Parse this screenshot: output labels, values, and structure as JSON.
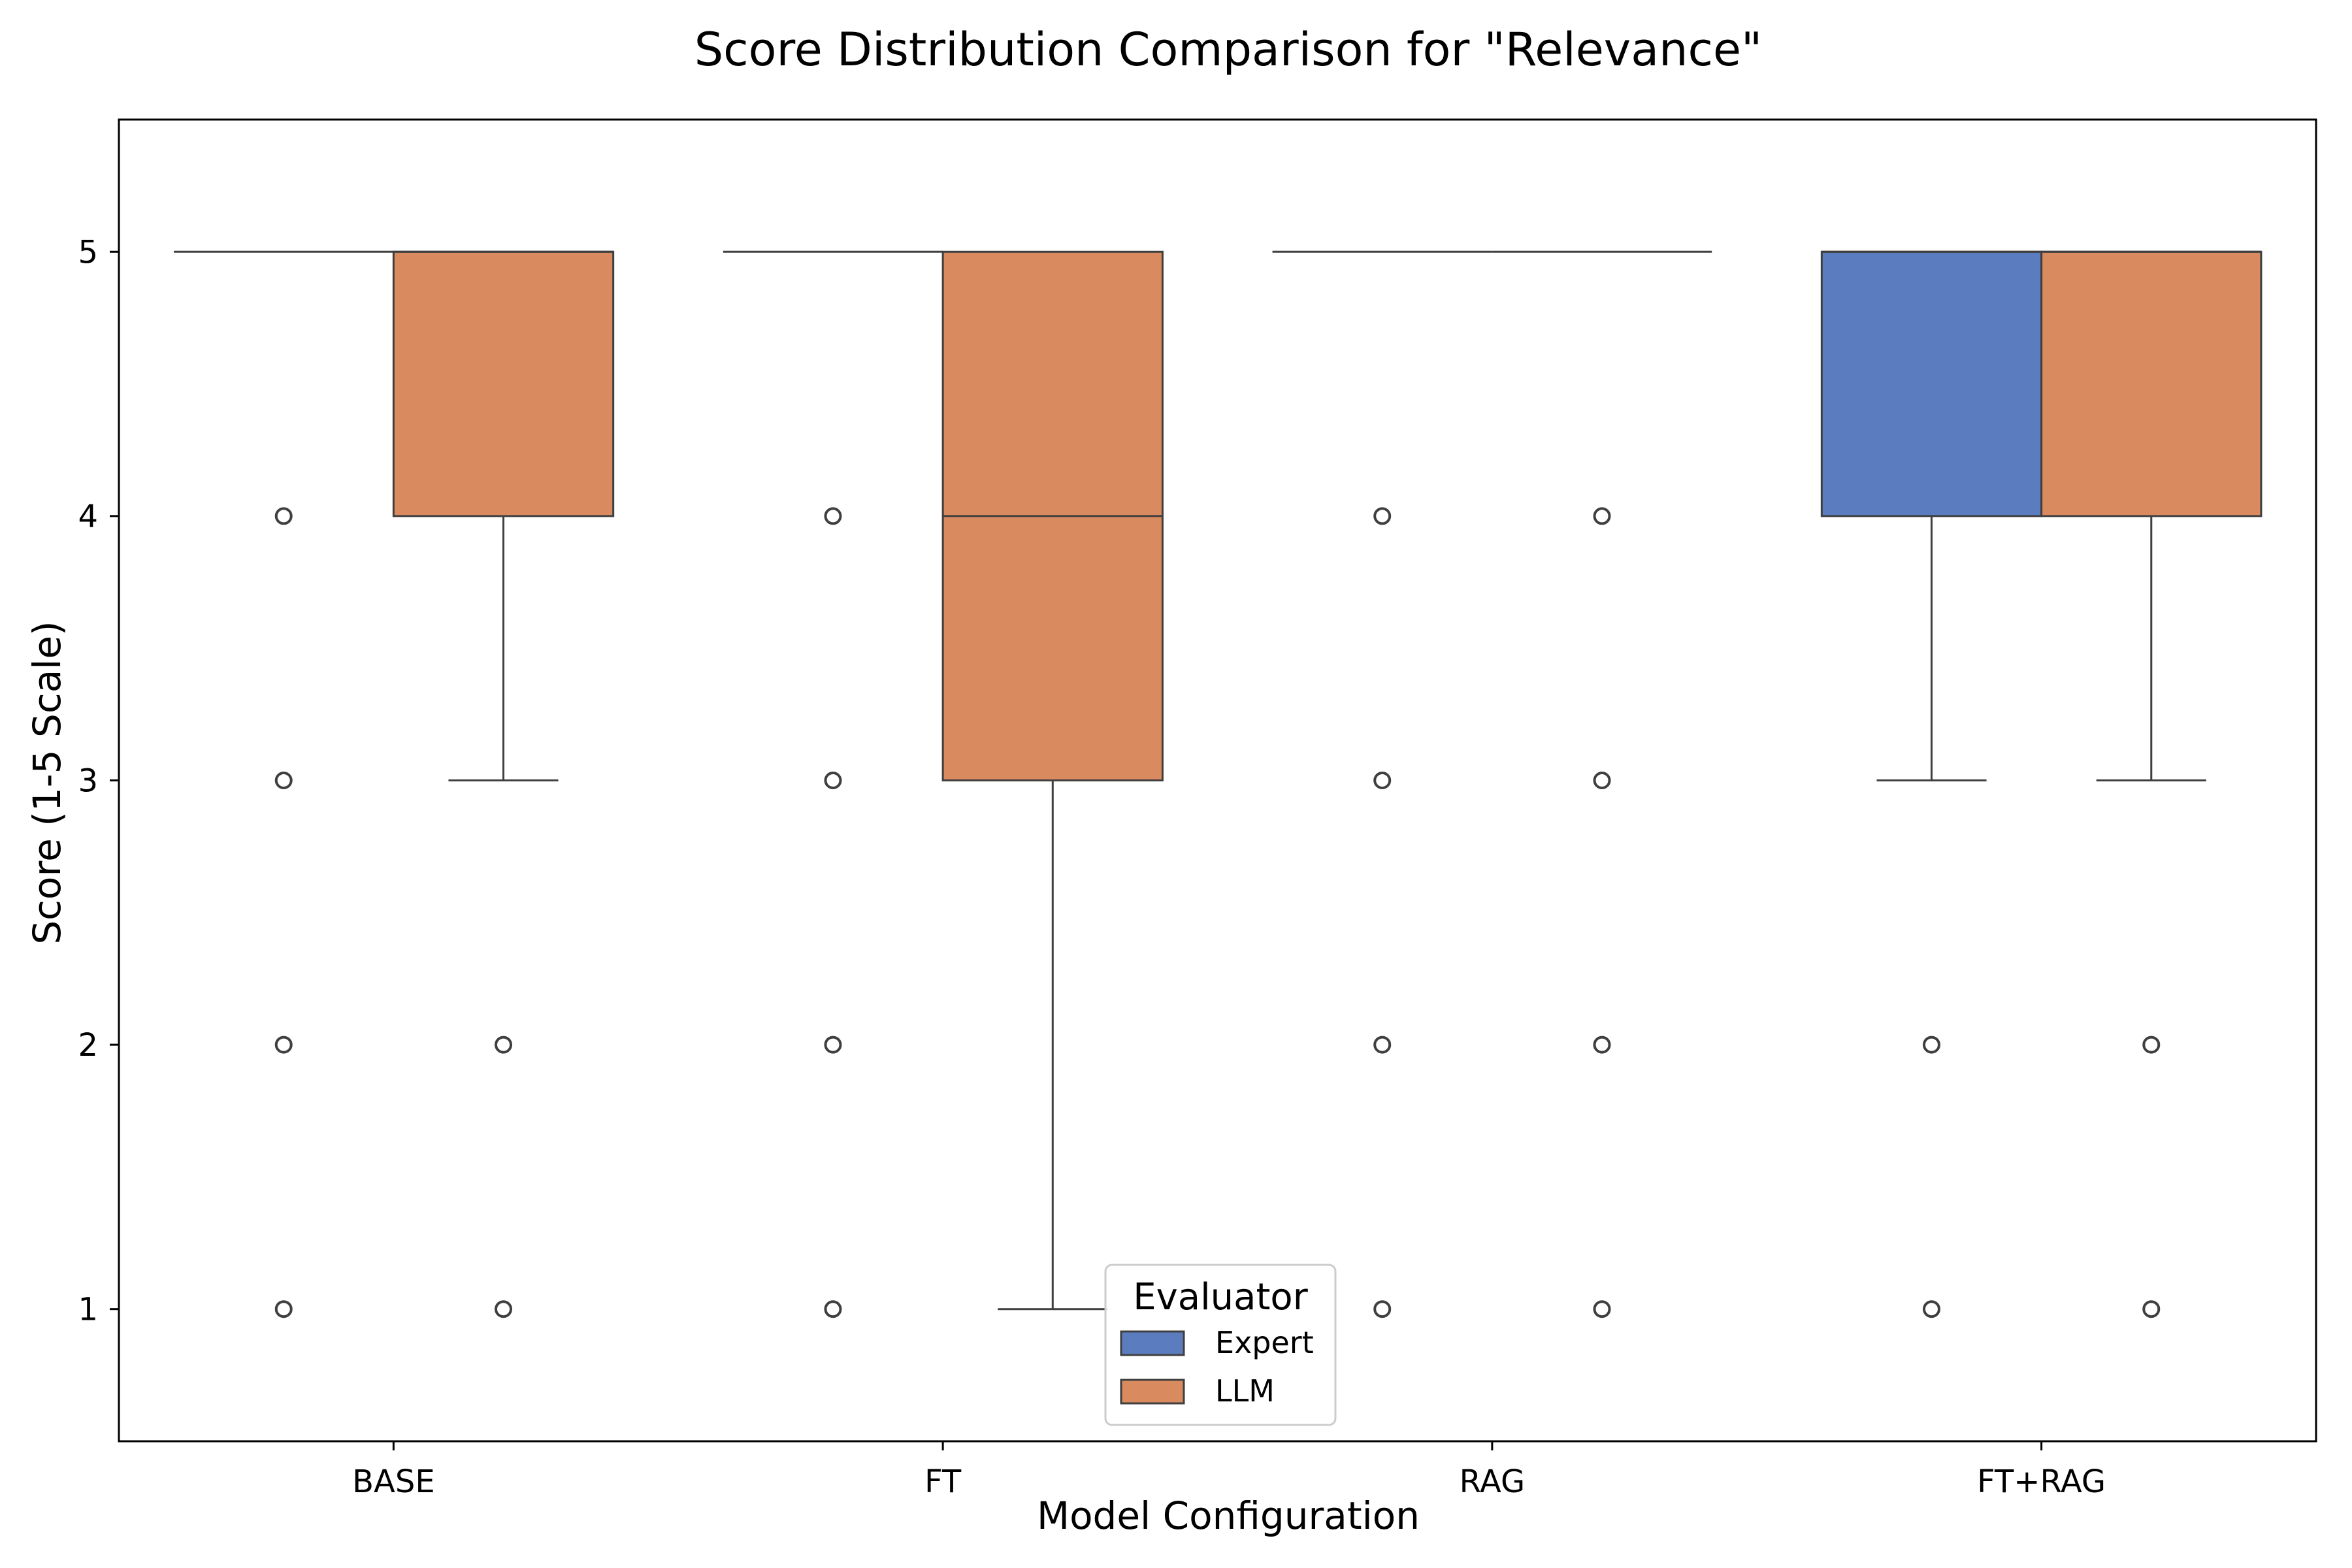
{
  "chart_data": {
    "type": "boxplot",
    "title": "Score Distribution Comparison for \"Relevance\"",
    "xlabel": "Model Configuration",
    "ylabel": "Score (1-5 Scale)",
    "ylim": [
      0.5,
      5.5
    ],
    "yticks": [
      1,
      2,
      3,
      4,
      5
    ],
    "grid": false,
    "categories": [
      "BASE",
      "FT",
      "RAG",
      "FT+RAG"
    ],
    "legend": {
      "title": "Evaluator",
      "placement": "lower-center"
    },
    "series": [
      {
        "name": "Expert",
        "color": "#5b7dbf",
        "boxes": [
          {
            "q1": 5,
            "median": 5,
            "q3": 5,
            "whislo": 5,
            "whishi": 5,
            "fliers": [
              4,
              3,
              2,
              1
            ]
          },
          {
            "q1": 5,
            "median": 5,
            "q3": 5,
            "whislo": 5,
            "whishi": 5,
            "fliers": [
              4,
              3,
              2,
              1
            ]
          },
          {
            "q1": 5,
            "median": 5,
            "q3": 5,
            "whislo": 5,
            "whishi": 5,
            "fliers": [
              4,
              3,
              2,
              1
            ]
          },
          {
            "q1": 4,
            "median": 5,
            "q3": 5,
            "whislo": 3,
            "whishi": 5,
            "fliers": [
              2,
              1
            ]
          }
        ]
      },
      {
        "name": "LLM",
        "color": "#d98a5e",
        "boxes": [
          {
            "q1": 4,
            "median": 5,
            "q3": 5,
            "whislo": 3,
            "whishi": 5,
            "fliers": [
              2,
              1
            ]
          },
          {
            "q1": 3,
            "median": 4,
            "q3": 5,
            "whislo": 1,
            "whishi": 5,
            "fliers": []
          },
          {
            "q1": 5,
            "median": 5,
            "q3": 5,
            "whislo": 5,
            "whishi": 5,
            "fliers": [
              4,
              3,
              2,
              1
            ]
          },
          {
            "q1": 4,
            "median": 5,
            "q3": 5,
            "whislo": 3,
            "whishi": 5,
            "fliers": [
              2,
              1
            ]
          }
        ]
      }
    ]
  }
}
